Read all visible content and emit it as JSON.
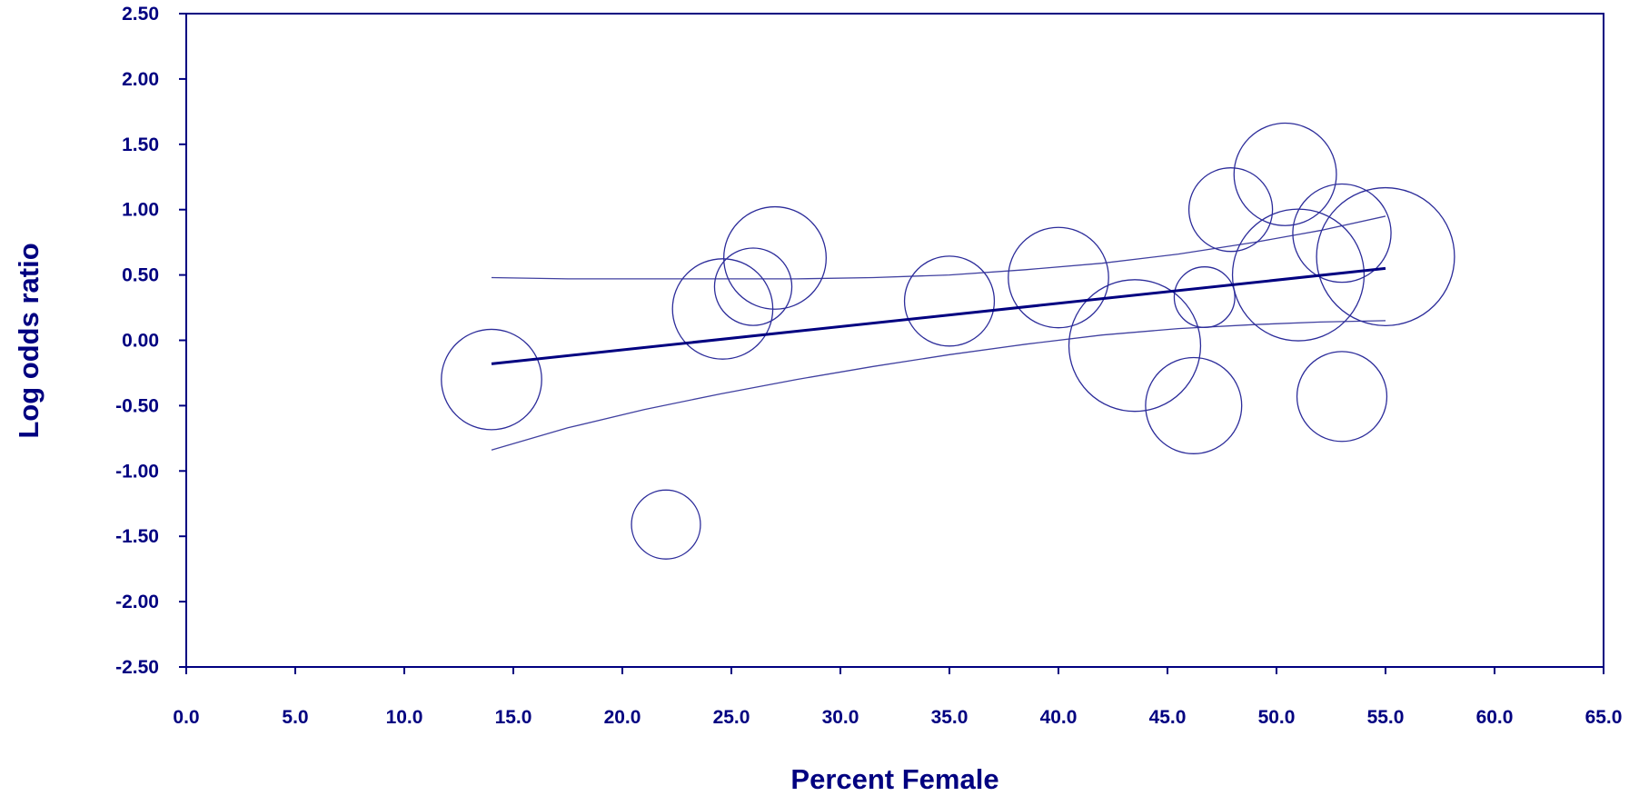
{
  "chart_data": {
    "type": "scatter",
    "title": "",
    "xlabel": "Percent Female",
    "ylabel": "Log odds ratio",
    "xlim": [
      0,
      65
    ],
    "ylim": [
      -2.5,
      2.5
    ],
    "x_ticks": [
      "0.0",
      "5.0",
      "10.0",
      "15.0",
      "20.0",
      "25.0",
      "30.0",
      "35.0",
      "40.0",
      "45.0",
      "50.0",
      "55.0",
      "60.0",
      "65.0"
    ],
    "y_ticks": [
      "2.50",
      "2.00",
      "1.50",
      "1.00",
      "0.50",
      "0.00",
      "-0.50",
      "-1.00",
      "-1.50",
      "-2.00",
      "-2.50"
    ],
    "grid": false,
    "bubble_sizes_relative": true,
    "points": [
      {
        "x": 14.0,
        "y": -0.3,
        "size": 48
      },
      {
        "x": 22.0,
        "y": -1.41,
        "size": 33
      },
      {
        "x": 24.6,
        "y": 0.24,
        "size": 48
      },
      {
        "x": 26.0,
        "y": 0.41,
        "size": 37
      },
      {
        "x": 27.0,
        "y": 0.63,
        "size": 49
      },
      {
        "x": 35.0,
        "y": 0.3,
        "size": 43
      },
      {
        "x": 40.0,
        "y": 0.48,
        "size": 48
      },
      {
        "x": 43.5,
        "y": -0.04,
        "size": 63
      },
      {
        "x": 46.2,
        "y": -0.5,
        "size": 46
      },
      {
        "x": 46.7,
        "y": 0.33,
        "size": 29
      },
      {
        "x": 47.9,
        "y": 1.0,
        "size": 40
      },
      {
        "x": 50.4,
        "y": 1.27,
        "size": 49
      },
      {
        "x": 51.0,
        "y": 0.5,
        "size": 63
      },
      {
        "x": 53.0,
        "y": 0.82,
        "size": 47
      },
      {
        "x": 53.0,
        "y": -0.43,
        "size": 43
      },
      {
        "x": 55.0,
        "y": 0.64,
        "size": 66
      }
    ],
    "regression_line": {
      "x": [
        14.0,
        55.0
      ],
      "y": [
        -0.18,
        0.55
      ]
    },
    "confidence_upper": {
      "x": [
        14.0,
        17.5,
        21.0,
        24.5,
        28.0,
        31.5,
        35.0,
        38.5,
        42.0,
        45.5,
        49.0,
        52.0,
        55.0
      ],
      "y": [
        0.48,
        0.47,
        0.47,
        0.47,
        0.47,
        0.48,
        0.5,
        0.54,
        0.59,
        0.66,
        0.75,
        0.84,
        0.95
      ]
    },
    "confidence_lower": {
      "x": [
        14.0,
        17.5,
        21.0,
        24.5,
        28.0,
        31.5,
        35.0,
        38.5,
        42.0,
        45.5,
        49.0,
        52.0,
        55.0
      ],
      "y": [
        -0.84,
        -0.67,
        -0.53,
        -0.41,
        -0.3,
        -0.2,
        -0.11,
        -0.03,
        0.04,
        0.09,
        0.12,
        0.14,
        0.15
      ]
    },
    "colors": {
      "axis": "#000080",
      "marker": "#2c2c9a",
      "line": "#000080",
      "band": "#4040a0"
    }
  }
}
